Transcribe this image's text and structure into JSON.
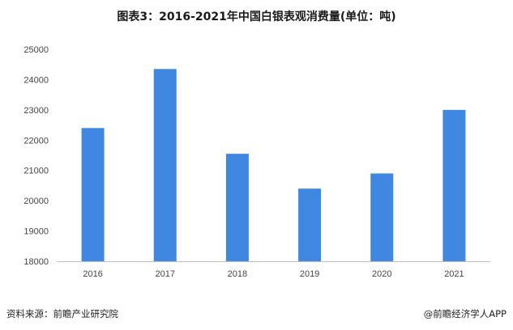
{
  "title": "图表3：2016-2021年中国白银表观消费量(单位：吨)",
  "source": "资料来源：前瞻产业研究院",
  "credit": "@前瞻经济学人APP",
  "chart_data": {
    "type": "bar",
    "categories": [
      "2016",
      "2017",
      "2018",
      "2019",
      "2020",
      "2021"
    ],
    "values": [
      22400,
      24350,
      21550,
      20400,
      20900,
      23000
    ],
    "ylim": [
      18000,
      25000
    ],
    "yticks": [
      18000,
      19000,
      20000,
      21000,
      22000,
      23000,
      24000,
      25000
    ],
    "grid": false,
    "colors": {
      "bar": "#3f87e1",
      "axis": "#bfbfbf"
    }
  }
}
